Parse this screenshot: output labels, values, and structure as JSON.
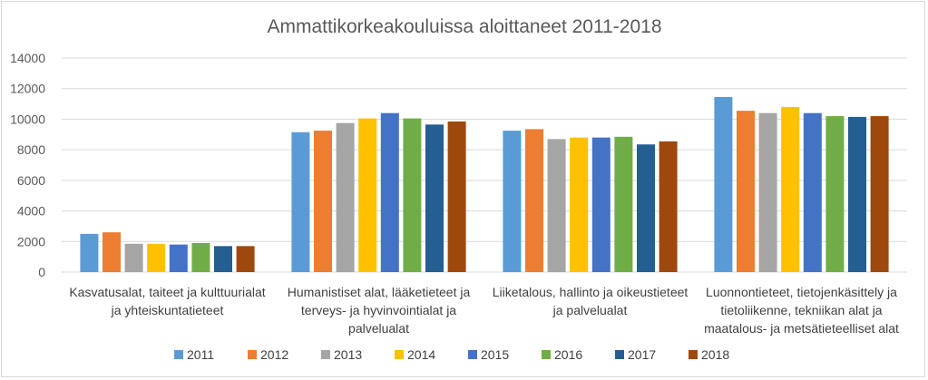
{
  "chart_data": {
    "type": "bar",
    "title": "Ammattikorkeakouluissa aloittaneet 2011-2018",
    "xlabel": "",
    "ylabel": "",
    "ylim": [
      0,
      14000
    ],
    "yticks": [
      "0",
      "2000",
      "4000",
      "6000",
      "8000",
      "10000",
      "12000",
      "14000"
    ],
    "grid": true,
    "legend_position": "bottom",
    "categories": [
      [
        "Kasvatusalat, taiteet ja kulttuurialat",
        "ja yhteiskuntatieteet"
      ],
      [
        "Humanistiset alat, lääketieteet ja",
        "terveys- ja hyvinvointialat ja",
        "palvelualat"
      ],
      [
        "Liiketalous, hallinto ja oikeustieteet",
        "ja palvelualat"
      ],
      [
        "Luonnontieteet, tietojenkäsittely ja",
        "tietoliikenne, tekniikan alat ja",
        "maatalous- ja metsätieteelliset alat"
      ]
    ],
    "series": [
      {
        "name": "2011",
        "color": "#5b9bd5",
        "values": [
          2500,
          9150,
          9250,
          11450
        ]
      },
      {
        "name": "2012",
        "color": "#ed7d31",
        "values": [
          2600,
          9250,
          9350,
          10550
        ]
      },
      {
        "name": "2013",
        "color": "#a5a5a5",
        "values": [
          1850,
          9750,
          8700,
          10400
        ]
      },
      {
        "name": "2014",
        "color": "#ffc000",
        "values": [
          1850,
          10050,
          8800,
          10800
        ]
      },
      {
        "name": "2015",
        "color": "#4472c4",
        "values": [
          1800,
          10400,
          8800,
          10400
        ]
      },
      {
        "name": "2016",
        "color": "#70ad47",
        "values": [
          1900,
          10050,
          8850,
          10200
        ]
      },
      {
        "name": "2017",
        "color": "#255e91",
        "values": [
          1700,
          9650,
          8350,
          10150
        ]
      },
      {
        "name": "2018",
        "color": "#9e480e",
        "values": [
          1700,
          9850,
          8550,
          10200
        ]
      }
    ]
  }
}
